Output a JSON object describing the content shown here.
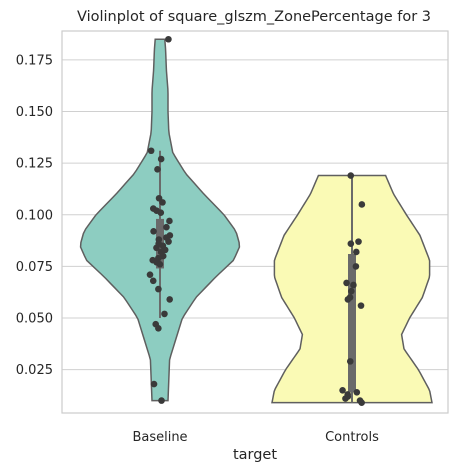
{
  "chart_data": {
    "type": "violin",
    "title": "Violinplot of square_glszm_ZonePercentage for 3",
    "xlabel": "target",
    "ylabel": "",
    "ylim": [
      0.004,
      0.189
    ],
    "yticks": [
      0.025,
      0.05,
      0.075,
      0.1,
      0.125,
      0.15,
      0.175
    ],
    "ytick_labels": [
      "0.025",
      "0.050",
      "0.075",
      "0.100",
      "0.125",
      "0.150",
      "0.175"
    ],
    "grid": "horizontal",
    "categories": [
      "Baseline",
      "Controls"
    ],
    "colors": {
      "Baseline": "#8dcdc1",
      "Controls": "#fafab5",
      "edge": "#5f5f5f",
      "points": "#3a3a3a",
      "box": "#6a6a6a",
      "grid": "#d0d0d0",
      "frame": "#cccccc"
    },
    "violins": [
      {
        "name": "Baseline",
        "range": [
          0.01,
          0.185
        ],
        "quartiles": [
          0.074,
          0.098
        ],
        "whiskers": [
          0.05,
          0.131
        ],
        "median": 0.086,
        "density_profile": [
          [
            0.01,
            0.1
          ],
          [
            0.03,
            0.12
          ],
          [
            0.05,
            0.28
          ],
          [
            0.06,
            0.45
          ],
          [
            0.07,
            0.7
          ],
          [
            0.078,
            0.92
          ],
          [
            0.085,
            1.0
          ],
          [
            0.092,
            0.95
          ],
          [
            0.1,
            0.8
          ],
          [
            0.11,
            0.55
          ],
          [
            0.12,
            0.32
          ],
          [
            0.13,
            0.16
          ],
          [
            0.14,
            0.11
          ],
          [
            0.15,
            0.1
          ],
          [
            0.16,
            0.1
          ],
          [
            0.17,
            0.08
          ],
          [
            0.18,
            0.07
          ],
          [
            0.185,
            0.06
          ]
        ],
        "points": [
          0.185,
          0.131,
          0.127,
          0.122,
          0.108,
          0.106,
          0.103,
          0.102,
          0.101,
          0.097,
          0.094,
          0.092,
          0.09,
          0.089,
          0.088,
          0.087,
          0.086,
          0.085,
          0.084,
          0.083,
          0.082,
          0.08,
          0.079,
          0.078,
          0.077,
          0.076,
          0.071,
          0.068,
          0.064,
          0.059,
          0.052,
          0.047,
          0.045,
          0.018,
          0.01
        ]
      },
      {
        "name": "Controls",
        "range": [
          0.009,
          0.119
        ],
        "quartiles": [
          0.014,
          0.081
        ],
        "whiskers": [
          0.009,
          0.119
        ],
        "median": 0.056,
        "density_profile": [
          [
            0.009,
            1.0
          ],
          [
            0.015,
            0.97
          ],
          [
            0.025,
            0.83
          ],
          [
            0.035,
            0.65
          ],
          [
            0.042,
            0.62
          ],
          [
            0.05,
            0.72
          ],
          [
            0.06,
            0.88
          ],
          [
            0.07,
            0.97
          ],
          [
            0.078,
            0.97
          ],
          [
            0.09,
            0.85
          ],
          [
            0.1,
            0.68
          ],
          [
            0.11,
            0.52
          ],
          [
            0.119,
            0.42
          ]
        ],
        "points": [
          0.119,
          0.105,
          0.087,
          0.086,
          0.082,
          0.075,
          0.067,
          0.066,
          0.063,
          0.06,
          0.059,
          0.056,
          0.029,
          0.015,
          0.014,
          0.013,
          0.012,
          0.011,
          0.01,
          0.009
        ]
      }
    ]
  }
}
